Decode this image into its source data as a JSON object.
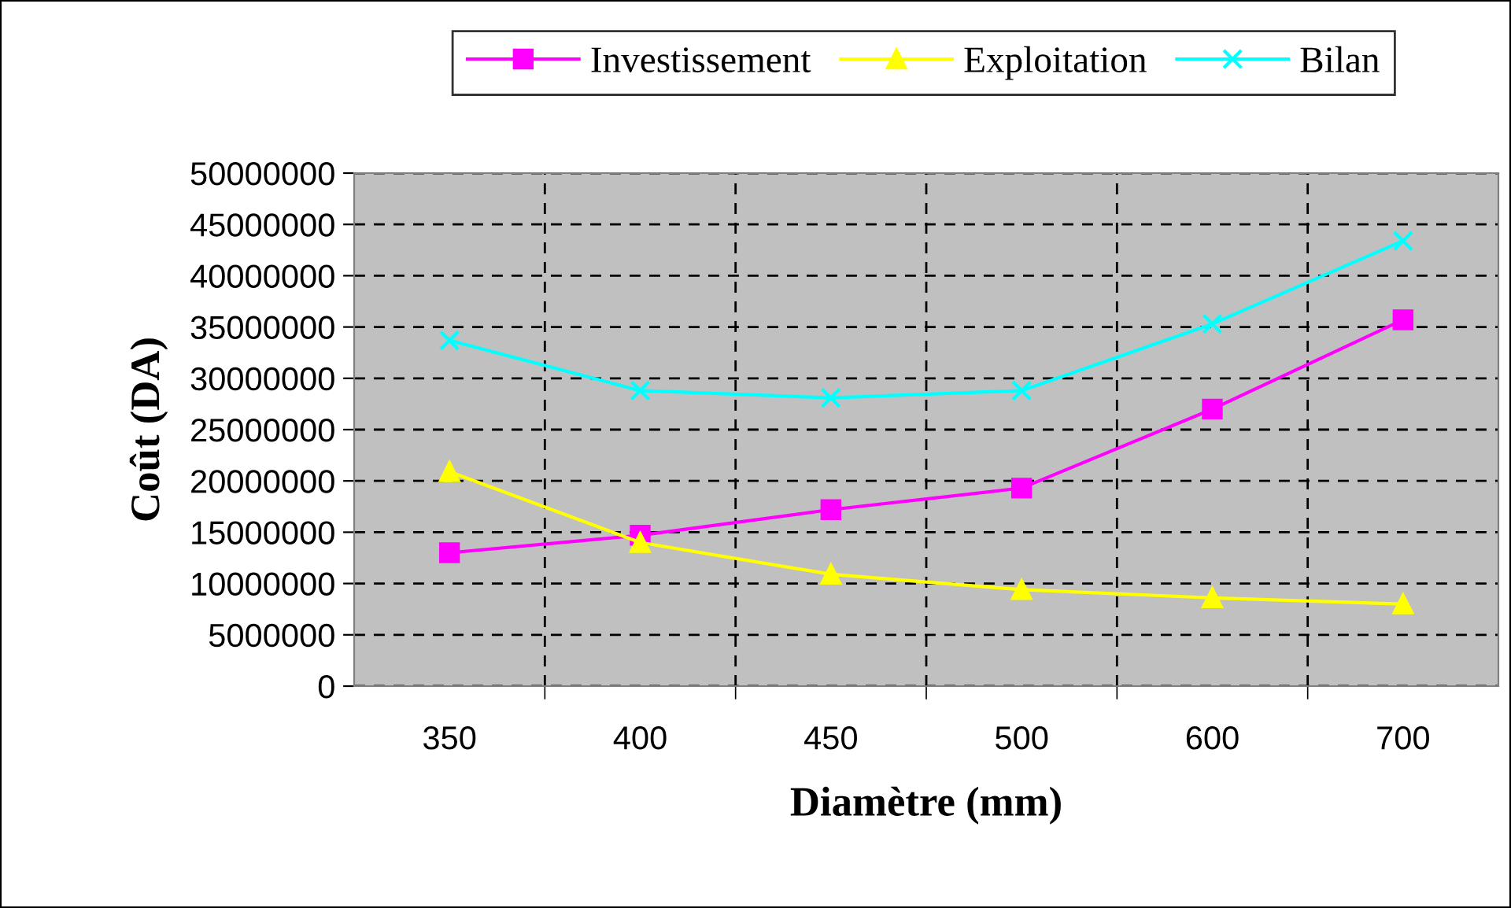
{
  "chart_data": {
    "type": "line",
    "xlabel": "Diamètre (mm)",
    "ylabel": "Coût (DA)",
    "categories": [
      "350",
      "400",
      "450",
      "500",
      "600",
      "700"
    ],
    "series": [
      {
        "name": "Investissement",
        "color": "#ff00ff",
        "marker": "square",
        "values": [
          13000000,
          14700000,
          17200000,
          19300000,
          27000000,
          35700000
        ]
      },
      {
        "name": "Exploitation",
        "color": "#ffff00",
        "marker": "triangle",
        "values": [
          20900000,
          14000000,
          10900000,
          9400000,
          8600000,
          8000000
        ]
      },
      {
        "name": "Bilan",
        "color": "#00ffff",
        "marker": "cross",
        "values": [
          33700000,
          28800000,
          28100000,
          28800000,
          35300000,
          43400000
        ]
      }
    ],
    "ylim": [
      0,
      50000000
    ],
    "yticks": [
      0,
      5000000,
      10000000,
      15000000,
      20000000,
      25000000,
      30000000,
      35000000,
      40000000,
      45000000,
      50000000
    ],
    "grid": true,
    "legend": "top right"
  }
}
